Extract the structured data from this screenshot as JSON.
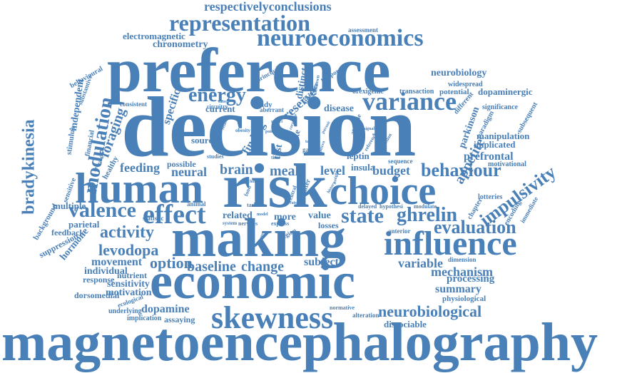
{
  "color": "#4a80b8",
  "words": [
    {
      "id": "magnetoencephalography",
      "text": "magnetoencephalography"
    },
    {
      "id": "decision",
      "text": "decision"
    },
    {
      "id": "preference",
      "text": "preference"
    },
    {
      "id": "economic",
      "text": "economic"
    },
    {
      "id": "making",
      "text": "making"
    },
    {
      "id": "risk",
      "text": "risk"
    },
    {
      "id": "human",
      "text": "human"
    },
    {
      "id": "choice",
      "text": "choice"
    },
    {
      "id": "influence",
      "text": "influence"
    },
    {
      "id": "skewness",
      "text": "skewness"
    },
    {
      "id": "neuroeconomics",
      "text": "neuroeconomics"
    },
    {
      "id": "representation",
      "text": "representation"
    },
    {
      "id": "respectivelyconclusions",
      "text": "respectivelyconclusions"
    },
    {
      "id": "variance",
      "text": "variance"
    },
    {
      "id": "effect",
      "text": "effect"
    },
    {
      "id": "energy",
      "text": "energy"
    },
    {
      "id": "valence",
      "text": "valence"
    },
    {
      "id": "behaviour",
      "text": "behaviour"
    },
    {
      "id": "state",
      "text": "state"
    },
    {
      "id": "ghrelin",
      "text": "ghrelin"
    },
    {
      "id": "evaluation",
      "text": "evaluation"
    },
    {
      "id": "impulsivity",
      "text": "impulsivity"
    },
    {
      "id": "modulation",
      "text": "modulation"
    },
    {
      "id": "bradykinesia",
      "text": "bradykinesia"
    },
    {
      "id": "activity",
      "text": "activity"
    },
    {
      "id": "option",
      "text": "option"
    },
    {
      "id": "levodopa",
      "text": "levodopa"
    },
    {
      "id": "baseline",
      "text": "baseline"
    },
    {
      "id": "change",
      "text": "change"
    },
    {
      "id": "neurobiological",
      "text": "neurobiological"
    },
    {
      "id": "mechanism",
      "text": "mechanism"
    },
    {
      "id": "variable",
      "text": "variable"
    },
    {
      "id": "brain",
      "text": "brain"
    },
    {
      "id": "neural",
      "text": "neural"
    },
    {
      "id": "meal",
      "text": "meal"
    },
    {
      "id": "level",
      "text": "level"
    },
    {
      "id": "budget",
      "text": "budget"
    },
    {
      "id": "dopamine",
      "text": "dopamine"
    },
    {
      "id": "foraging",
      "text": "foraging"
    },
    {
      "id": "feeding",
      "text": "feeding"
    },
    {
      "id": "reserve",
      "text": "reserve"
    },
    {
      "id": "appetite",
      "text": "appetite"
    },
    {
      "id": "prefrontal",
      "text": "prefrontal"
    },
    {
      "id": "neurobiology",
      "text": "neurobiology"
    },
    {
      "id": "subject",
      "text": "subject"
    },
    {
      "id": "summary",
      "text": "summary"
    },
    {
      "id": "processing",
      "text": "processing"
    },
    {
      "id": "sensitivity",
      "text": "sensitivity"
    },
    {
      "id": "motivation",
      "text": "motivation"
    },
    {
      "id": "movement",
      "text": "movement"
    },
    {
      "id": "individual",
      "text": "individual"
    },
    {
      "id": "electromagnetic",
      "text": "electromagnetic"
    },
    {
      "id": "chronometry",
      "text": "chronometry"
    },
    {
      "id": "specific",
      "text": "specific"
    },
    {
      "id": "finding",
      "text": "finding"
    },
    {
      "id": "independent",
      "text": "independent"
    },
    {
      "id": "disease",
      "text": "disease"
    },
    {
      "id": "parkinson",
      "text": "parkinson"
    },
    {
      "id": "dissociable",
      "text": "dissociable"
    },
    {
      "id": "dopaminergic",
      "text": "dopaminergic"
    },
    {
      "id": "implicated",
      "text": "implicated"
    },
    {
      "id": "manipulation",
      "text": "manipulation"
    },
    {
      "id": "hormone",
      "text": "hormone"
    },
    {
      "id": "multiple",
      "text": "multiple"
    },
    {
      "id": "parietal",
      "text": "parietal"
    },
    {
      "id": "feedback",
      "text": "feedback"
    },
    {
      "id": "suppression",
      "text": "suppression"
    },
    {
      "id": "background",
      "text": "background"
    },
    {
      "id": "source",
      "text": "source"
    },
    {
      "id": "current",
      "text": "current"
    },
    {
      "id": "related",
      "text": "related"
    },
    {
      "id": "more",
      "text": "more"
    },
    {
      "id": "value",
      "text": "value"
    },
    {
      "id": "losses",
      "text": "losses"
    },
    {
      "id": "test",
      "text": "test"
    },
    {
      "id": "intake",
      "text": "intake"
    },
    {
      "id": "distinct",
      "text": "distinct"
    },
    {
      "id": "study",
      "text": "study"
    },
    {
      "id": "insula",
      "text": "insula"
    },
    {
      "id": "leptin",
      "text": "leptin"
    },
    {
      "id": "possible",
      "text": "possible"
    },
    {
      "id": "assessment",
      "text": "assessment"
    },
    {
      "id": "behavioural",
      "text": "behavioural"
    },
    {
      "id": "substantive",
      "text": "substantive"
    },
    {
      "id": "consistent",
      "text": "consistent"
    },
    {
      "id": "stimulus",
      "text": "stimulus"
    },
    {
      "id": "financial",
      "text": "financial"
    },
    {
      "id": "healthy",
      "text": "healthy"
    },
    {
      "id": "sensitive",
      "text": "sensitive"
    },
    {
      "id": "response",
      "text": "response"
    },
    {
      "id": "nutrient",
      "text": "nutrient"
    },
    {
      "id": "dorsomedial",
      "text": "dorsomedial"
    },
    {
      "id": "ecological",
      "text": "ecological"
    },
    {
      "id": "underlying",
      "text": "underlying"
    },
    {
      "id": "implication",
      "text": "implication"
    },
    {
      "id": "assaying",
      "text": "assaying"
    },
    {
      "id": "normative",
      "text": "normative"
    },
    {
      "id": "alteration",
      "text": "alteration"
    },
    {
      "id": "physiological",
      "text": "physiological"
    },
    {
      "id": "dimension",
      "text": "dimension"
    },
    {
      "id": "anterior",
      "text": "anterior"
    },
    {
      "id": "hypothesi",
      "text": "hypothesi"
    },
    {
      "id": "modulate",
      "text": "modulate"
    },
    {
      "id": "delayed",
      "text": "delayed"
    },
    {
      "id": "sequence",
      "text": "sequence"
    },
    {
      "id": "motivational",
      "text": "motivational"
    },
    {
      "id": "lotteries",
      "text": "lotteries"
    },
    {
      "id": "chapter",
      "text": "chapter"
    },
    {
      "id": "encoding",
      "text": "encoding"
    },
    {
      "id": "immediate",
      "text": "immediate"
    },
    {
      "id": "paradigm",
      "text": "paradigm"
    },
    {
      "id": "subsequent",
      "text": "subsequent"
    },
    {
      "id": "different",
      "text": "different"
    },
    {
      "id": "significance",
      "text": "significance"
    },
    {
      "id": "widespread",
      "text": "widespread"
    },
    {
      "id": "potential",
      "text": "potential"
    },
    {
      "id": "transaction",
      "text": "transaction"
    },
    {
      "id": "orexigenic",
      "text": "orexigenic"
    },
    {
      "id": "temporal",
      "text": "temporal"
    },
    {
      "id": "principal",
      "text": "principal"
    },
    {
      "id": "circuitry",
      "text": "circuitry"
    },
    {
      "id": "aberrant",
      "text": "aberrant"
    },
    {
      "id": "disorder",
      "text": "disorder"
    },
    {
      "id": "attitude",
      "text": "attitude"
    },
    {
      "id": "gain",
      "text": "gain"
    },
    {
      "id": "statistic",
      "text": "statistic"
    },
    {
      "id": "animal",
      "text": "animal"
    },
    {
      "id": "task",
      "text": "task"
    },
    {
      "id": "alter",
      "text": "alter"
    },
    {
      "id": "region",
      "text": "region"
    },
    {
      "id": "express",
      "text": "express"
    },
    {
      "id": "nervous",
      "text": "nervous"
    },
    {
      "id": "system",
      "text": "system"
    },
    {
      "id": "obesity",
      "text": "obesity"
    },
    {
      "id": "food",
      "text": "food"
    },
    {
      "id": "hungry",
      "text": "hungry"
    },
    {
      "id": "central",
      "text": "central"
    },
    {
      "id": "studies",
      "text": "studies"
    },
    {
      "id": "target",
      "text": "target"
    },
    {
      "id": "direction",
      "text": "direction"
    },
    {
      "id": "network",
      "text": "network"
    },
    {
      "id": "model",
      "text": "model"
    },
    {
      "id": "report",
      "text": "report"
    },
    {
      "id": "point",
      "text": "point"
    },
    {
      "id": "unknown",
      "text": "unknown"
    },
    {
      "id": "time",
      "text": "time"
    },
    {
      "id": "sated",
      "text": "sated"
    },
    {
      "id": "reference",
      "text": "reference"
    },
    {
      "id": "tonight",
      "text": "tonight"
    },
    {
      "id": "signal",
      "text": "signal"
    },
    {
      "id": "pursuit",
      "text": "pursuit"
    },
    {
      "id": "correlate",
      "text": "correlate"
    },
    {
      "id": "history",
      "text": "history"
    },
    {
      "id": "choose",
      "text": "choose"
    },
    {
      "id": "exist",
      "text": "exist"
    },
    {
      "id": "pattern",
      "text": "pattern"
    },
    {
      "id": "support",
      "text": "support"
    },
    {
      "id": "rats",
      "text": "rats"
    },
    {
      "id": "relate",
      "text": "relate"
    }
  ]
}
